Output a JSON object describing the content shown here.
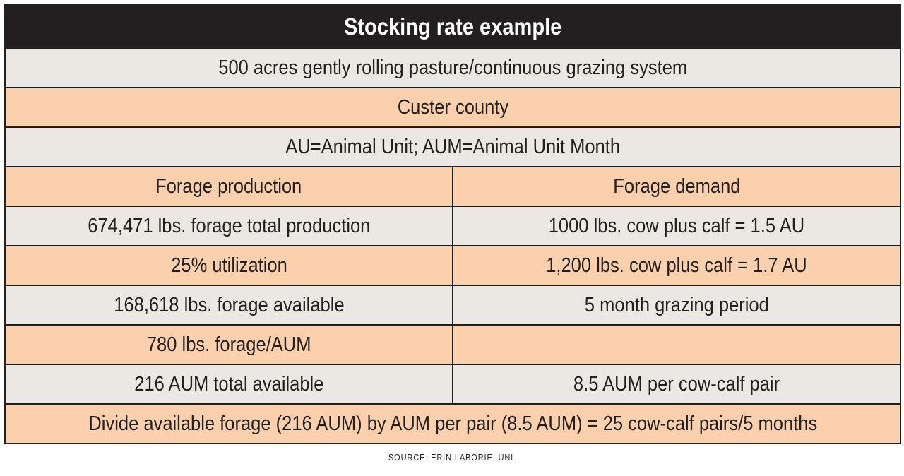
{
  "title": "Stocking rate example",
  "intro_rows": [
    "500 acres gently rolling pasture/continuous grazing system",
    "Custer county",
    "AU=Animal Unit; AUM=Animal Unit Month"
  ],
  "table": {
    "header": [
      "Forage production",
      "Forage demand"
    ],
    "rows": [
      [
        "674,471 lbs. forage total production",
        "1000 lbs. cow plus calf = 1.5 AU"
      ],
      [
        "25% utilization",
        "1,200 lbs. cow plus calf = 1.7 AU"
      ],
      [
        "168,618 lbs. forage available",
        "5 month grazing period"
      ],
      [
        "780 lbs. forage/AUM",
        null
      ],
      [
        "216 AUM total available",
        "8.5 AUM per cow-calf pair"
      ]
    ]
  },
  "conclusion": "Divide available forage (216 AUM) by AUM per pair (8.5 AUM) = 25 cow-calf pairs/5 months",
  "source": "SOURCE: ERIN LABORIE, UNL"
}
